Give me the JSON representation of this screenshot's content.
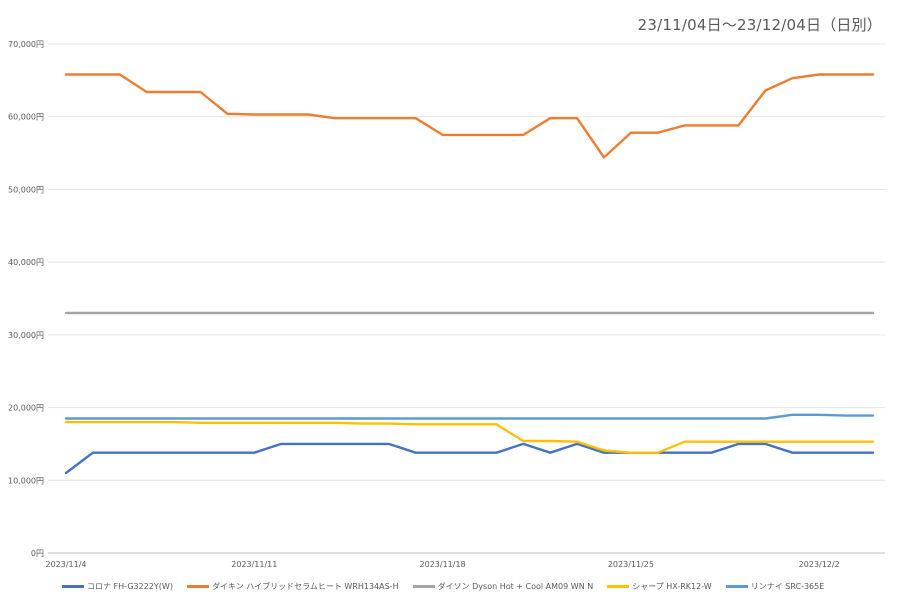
{
  "chart_data": {
    "type": "line",
    "title": "23/11/04日～23/12/04日（日別）",
    "x": [
      "2023/11/4",
      "2023/11/5",
      "2023/11/6",
      "2023/11/7",
      "2023/11/8",
      "2023/11/9",
      "2023/11/10",
      "2023/11/11",
      "2023/11/12",
      "2023/11/13",
      "2023/11/14",
      "2023/11/15",
      "2023/11/16",
      "2023/11/17",
      "2023/11/18",
      "2023/11/19",
      "2023/11/20",
      "2023/11/21",
      "2023/11/22",
      "2023/11/23",
      "2023/11/24",
      "2023/11/25",
      "2023/11/26",
      "2023/11/27",
      "2023/11/28",
      "2023/11/29",
      "2023/11/30",
      "2023/12/1",
      "2023/12/2",
      "2023/12/3",
      "2023/12/4"
    ],
    "x_tick_labels": [
      "2023/11/4",
      "2023/11/11",
      "2023/11/18",
      "2023/11/25",
      "2023/12/2"
    ],
    "y_tick_labels": [
      "0円",
      "10,000円",
      "20,000円",
      "30,000円",
      "40,000円",
      "50,000円",
      "60,000円",
      "70,000円"
    ],
    "ylim": [
      0,
      70000
    ],
    "grid": true,
    "legend_position": "bottom",
    "series": [
      {
        "name": "コロナ FH-G3222Y(W)",
        "color": "#4472c4",
        "values": [
          11000,
          13800,
          13800,
          13800,
          13800,
          13800,
          13800,
          13800,
          15000,
          15000,
          15000,
          15000,
          15000,
          13800,
          13800,
          13800,
          13800,
          15000,
          13800,
          15000,
          13800,
          13800,
          13800,
          13800,
          13800,
          15000,
          15000,
          13800,
          13800,
          13800,
          13800
        ]
      },
      {
        "name": "ダイキン ハイブリッドセラムヒート WRH134AS-H",
        "color": "#ed7d31",
        "values": [
          65800,
          65800,
          65800,
          63400,
          63400,
          63400,
          60400,
          60300,
          60300,
          60300,
          59800,
          59800,
          59800,
          59800,
          57500,
          57500,
          57500,
          57500,
          59800,
          59800,
          54400,
          57800,
          57800,
          58800,
          58800,
          58800,
          63600,
          65300,
          65800,
          65800,
          65800
        ]
      },
      {
        "name": "ダイソン Dyson Hot + Cool AM09 WN N",
        "color": "#a5a5a5",
        "values": [
          33000,
          33000,
          33000,
          33000,
          33000,
          33000,
          33000,
          33000,
          33000,
          33000,
          33000,
          33000,
          33000,
          33000,
          33000,
          33000,
          33000,
          33000,
          33000,
          33000,
          33000,
          33000,
          33000,
          33000,
          33000,
          33000,
          33000,
          33000,
          33000,
          33000,
          33000
        ]
      },
      {
        "name": "シャープ HX-RK12-W",
        "color": "#ffc000",
        "values": [
          18000,
          18000,
          18000,
          18000,
          18000,
          17900,
          17900,
          17900,
          17900,
          17900,
          17900,
          17800,
          17800,
          17700,
          17700,
          17700,
          17700,
          15400,
          15400,
          15300,
          14100,
          13800,
          13800,
          15300,
          15300,
          15300,
          15300,
          15300,
          15300,
          15300,
          15300
        ]
      },
      {
        "name": "リンナイ SRC-365E",
        "color": "#5b9bd5",
        "values": [
          18500,
          18500,
          18500,
          18500,
          18500,
          18500,
          18500,
          18500,
          18500,
          18500,
          18500,
          18500,
          18500,
          18500,
          18500,
          18500,
          18500,
          18500,
          18500,
          18500,
          18500,
          18500,
          18500,
          18500,
          18500,
          18500,
          18500,
          19000,
          19000,
          18900,
          18900
        ]
      }
    ]
  }
}
